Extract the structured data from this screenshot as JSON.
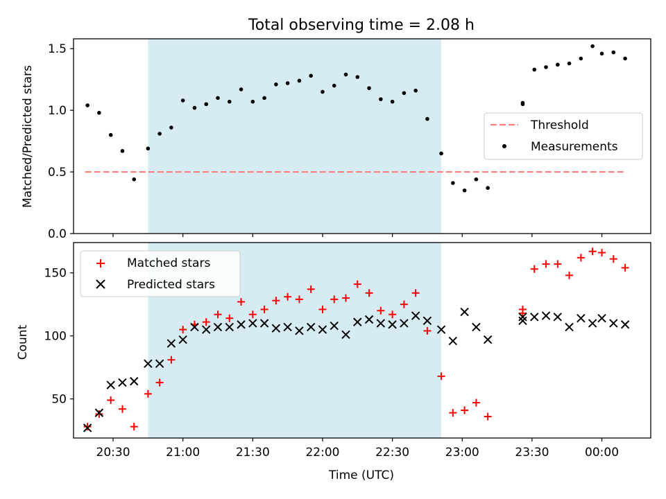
{
  "chart_data": [
    {
      "type": "scatter",
      "title": "Total observing time = 2.08 h",
      "ylabel": "Matched/Predicted stars",
      "xlim": [
        "20:13",
        "00:21"
      ],
      "ylim": [
        0,
        1.58
      ],
      "yticks": [
        0.0,
        0.5,
        1.0,
        1.5
      ],
      "ytick_labels": [
        "0.0",
        "0.5",
        "1.0",
        "1.5"
      ],
      "shaded_region": {
        "from": "20:45",
        "to": "22:51",
        "color": "#add8e6"
      },
      "threshold": {
        "name": "Threshold",
        "value": 0.5,
        "from": "20:18",
        "to": "00:10",
        "color": "#ff7f7f"
      },
      "legend": {
        "position": "center-right",
        "entries": [
          "Threshold",
          "Measurements"
        ]
      },
      "series": [
        {
          "name": "Measurements",
          "color": "#000000",
          "points": [
            [
              "20:19",
              1.04
            ],
            [
              "20:24",
              0.98
            ],
            [
              "20:29",
              0.8
            ],
            [
              "20:34",
              0.67
            ],
            [
              "20:39",
              0.44
            ],
            [
              "20:45",
              0.69
            ],
            [
              "20:50",
              0.81
            ],
            [
              "20:55",
              0.86
            ],
            [
              "21:00",
              1.08
            ],
            [
              "21:05",
              1.02
            ],
            [
              "21:10",
              1.05
            ],
            [
              "21:15",
              1.1
            ],
            [
              "21:20",
              1.07
            ],
            [
              "21:25",
              1.17
            ],
            [
              "21:30",
              1.07
            ],
            [
              "21:35",
              1.1
            ],
            [
              "21:40",
              1.21
            ],
            [
              "21:45",
              1.22
            ],
            [
              "21:50",
              1.24
            ],
            [
              "21:55",
              1.28
            ],
            [
              "22:00",
              1.15
            ],
            [
              "22:05",
              1.2
            ],
            [
              "22:10",
              1.29
            ],
            [
              "22:15",
              1.27
            ],
            [
              "22:20",
              1.18
            ],
            [
              "22:25",
              1.09
            ],
            [
              "22:30",
              1.07
            ],
            [
              "22:35",
              1.14
            ],
            [
              "22:40",
              1.16
            ],
            [
              "22:45",
              0.93
            ],
            [
              "22:51",
              0.65
            ],
            [
              "22:56",
              0.41
            ],
            [
              "23:01",
              0.35
            ],
            [
              "23:06",
              0.44
            ],
            [
              "23:11",
              0.37
            ],
            [
              "23:26",
              1.05
            ],
            [
              "23:26",
              1.06
            ],
            [
              "23:31",
              1.33
            ],
            [
              "23:36",
              1.35
            ],
            [
              "23:41",
              1.37
            ],
            [
              "23:46",
              1.38
            ],
            [
              "23:51",
              1.42
            ],
            [
              "23:56",
              1.52
            ],
            [
              "00:00",
              1.46
            ],
            [
              "00:05",
              1.47
            ],
            [
              "00:10",
              1.42
            ]
          ]
        }
      ]
    },
    {
      "type": "scatter",
      "xlabel": "Time (UTC)",
      "ylabel": "Count",
      "xlim": [
        "20:13",
        "00:21"
      ],
      "ylim": [
        19,
        174
      ],
      "xticks": [
        "20:30",
        "21:00",
        "21:30",
        "22:00",
        "22:30",
        "23:00",
        "23:30",
        "00:00"
      ],
      "yticks": [
        50,
        100,
        150
      ],
      "ytick_labels": [
        "50",
        "100",
        "150"
      ],
      "shaded_region": {
        "from": "20:45",
        "to": "22:51",
        "color": "#add8e6"
      },
      "legend": {
        "position": "top-left",
        "entries": [
          "Matched stars",
          "Predicted stars"
        ]
      },
      "series": [
        {
          "name": "Matched stars",
          "marker": "+",
          "color": "#ff0000",
          "points": [
            [
              "20:19",
              28
            ],
            [
              "20:24",
              38
            ],
            [
              "20:29",
              49
            ],
            [
              "20:34",
              42
            ],
            [
              "20:39",
              28
            ],
            [
              "20:45",
              54
            ],
            [
              "20:50",
              63
            ],
            [
              "20:55",
              81
            ],
            [
              "21:00",
              105
            ],
            [
              "21:05",
              109
            ],
            [
              "21:10",
              111
            ],
            [
              "21:15",
              117
            ],
            [
              "21:20",
              114
            ],
            [
              "21:25",
              127
            ],
            [
              "21:30",
              117
            ],
            [
              "21:35",
              121
            ],
            [
              "21:40",
              128
            ],
            [
              "21:45",
              131
            ],
            [
              "21:50",
              129
            ],
            [
              "21:55",
              137
            ],
            [
              "22:00",
              121
            ],
            [
              "22:05",
              129
            ],
            [
              "22:10",
              130
            ],
            [
              "22:15",
              141
            ],
            [
              "22:20",
              134
            ],
            [
              "22:25",
              120
            ],
            [
              "22:30",
              117
            ],
            [
              "22:35",
              125
            ],
            [
              "22:40",
              134
            ],
            [
              "22:45",
              104
            ],
            [
              "22:51",
              68
            ],
            [
              "22:56",
              39
            ],
            [
              "23:01",
              41
            ],
            [
              "23:06",
              47
            ],
            [
              "23:11",
              36
            ],
            [
              "23:26",
              121
            ],
            [
              "23:26",
              118
            ],
            [
              "23:31",
              153
            ],
            [
              "23:36",
              157
            ],
            [
              "23:41",
              157
            ],
            [
              "23:46",
              148
            ],
            [
              "23:51",
              162
            ],
            [
              "23:56",
              167
            ],
            [
              "00:00",
              166
            ],
            [
              "00:05",
              161
            ],
            [
              "00:10",
              154
            ]
          ]
        },
        {
          "name": "Predicted stars",
          "marker": "x",
          "color": "#000000",
          "points": [
            [
              "20:19",
              27
            ],
            [
              "20:24",
              39
            ],
            [
              "20:29",
              61
            ],
            [
              "20:34",
              63
            ],
            [
              "20:39",
              64
            ],
            [
              "20:45",
              78
            ],
            [
              "20:50",
              78
            ],
            [
              "20:55",
              94
            ],
            [
              "21:00",
              97
            ],
            [
              "21:05",
              107
            ],
            [
              "21:10",
              105
            ],
            [
              "21:15",
              107
            ],
            [
              "21:20",
              107
            ],
            [
              "21:25",
              109
            ],
            [
              "21:30",
              110
            ],
            [
              "21:35",
              110
            ],
            [
              "21:40",
              106
            ],
            [
              "21:45",
              107
            ],
            [
              "21:50",
              104
            ],
            [
              "21:55",
              107
            ],
            [
              "22:00",
              105
            ],
            [
              "22:05",
              108
            ],
            [
              "22:10",
              101
            ],
            [
              "22:15",
              111
            ],
            [
              "22:20",
              113
            ],
            [
              "22:25",
              110
            ],
            [
              "22:30",
              109
            ],
            [
              "22:35",
              110
            ],
            [
              "22:40",
              116
            ],
            [
              "22:45",
              112
            ],
            [
              "22:51",
              105
            ],
            [
              "22:56",
              96
            ],
            [
              "23:01",
              119
            ],
            [
              "23:06",
              107
            ],
            [
              "23:11",
              97
            ],
            [
              "23:26",
              115
            ],
            [
              "23:26",
              112
            ],
            [
              "23:31",
              115
            ],
            [
              "23:36",
              116
            ],
            [
              "23:41",
              115
            ],
            [
              "23:46",
              107
            ],
            [
              "23:51",
              114
            ],
            [
              "23:56",
              110
            ],
            [
              "00:00",
              114
            ],
            [
              "00:05",
              110
            ],
            [
              "00:10",
              109
            ]
          ]
        }
      ]
    }
  ]
}
